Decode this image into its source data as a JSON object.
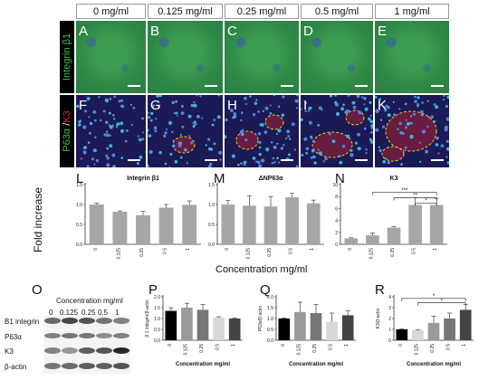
{
  "columns": [
    "0 mg/ml",
    "0.125 mg/ml",
    "0.25 mg/ml",
    "0.5 mg/ml",
    "1 mg/ml"
  ],
  "row_labels": {
    "row1": "Integrin β1",
    "row2_a": "P63α",
    "row2_sep": " /",
    "row2_b": "K3"
  },
  "panel_letters_row1": [
    "A",
    "B",
    "C",
    "D",
    "E"
  ],
  "panel_letters_row2": [
    "F",
    "G",
    "H",
    "I",
    "K"
  ],
  "colors": {
    "green": "#33a04a",
    "red": "#e02020",
    "bar": "#a6a6a6",
    "nuclei": "#1c2d8a"
  },
  "charts_top": {
    "y_axis_label": "Fold increase",
    "x_axis_label": "Concentration mg/ml",
    "panels": [
      "L",
      "M",
      "N"
    ]
  },
  "western_blot": {
    "panel": "O",
    "title": "Concentration mg/ml",
    "lane_labels": [
      "0",
      "0.125",
      "0.25",
      "0.5",
      "1"
    ],
    "band_labels": [
      "B1 integrin",
      "P63α",
      "K3",
      "β-actin"
    ]
  },
  "chart_data": [
    {
      "panel": "L",
      "type": "bar",
      "title": "Integrin β1",
      "categories": [
        "0",
        "0.125",
        "0.25",
        "0.5",
        "1"
      ],
      "values": [
        1.0,
        0.82,
        0.73,
        0.92,
        0.99
      ],
      "errors": [
        0.03,
        0.02,
        0.1,
        0.08,
        0.1
      ],
      "ylim": [
        0,
        1.5
      ],
      "yticks": [
        "0.0",
        "0.5",
        "1.0",
        "1.5"
      ]
    },
    {
      "panel": "M",
      "type": "bar",
      "title": "ΔNP63α",
      "categories": [
        "0",
        "0.125",
        "0.25",
        "0.5",
        "1"
      ],
      "values": [
        1.0,
        0.97,
        0.95,
        1.18,
        1.03
      ],
      "errors": [
        0.1,
        0.25,
        0.25,
        0.1,
        0.08
      ],
      "ylim": [
        0,
        1.5
      ],
      "yticks": [
        "0.0",
        "0.5",
        "1.0",
        "1.5"
      ]
    },
    {
      "panel": "N",
      "type": "bar",
      "title": "K3",
      "categories": [
        "0",
        "0.125",
        "0.25",
        "0.5",
        "1"
      ],
      "values": [
        1.0,
        1.5,
        2.8,
        6.6,
        6.6
      ],
      "errors": [
        0.1,
        0.4,
        0.2,
        1.2,
        1.1
      ],
      "ylim": [
        0,
        10
      ],
      "yticks": [
        "0",
        "2",
        "4",
        "6",
        "8",
        "10"
      ],
      "significance": [
        "***",
        "**",
        "*"
      ]
    },
    {
      "panel": "P",
      "type": "bar",
      "ylabel": "β 1 integrin/β-actin",
      "xlabel": "Concentration mg/ml",
      "categories": [
        "0",
        "0.125",
        "0.25",
        "0.5",
        "1"
      ],
      "values": [
        1.35,
        1.5,
        1.4,
        1.05,
        1.0
      ],
      "errors": [
        0.15,
        0.2,
        0.25,
        0.03,
        0.03
      ],
      "colors": [
        "#000000",
        "#9a9a9a",
        "#777777",
        "#d8d8d8",
        "#444444"
      ],
      "ylim": [
        0,
        2.0
      ],
      "yticks": [
        "0.0",
        "0.5",
        "1.0",
        "1.5",
        "2.0"
      ]
    },
    {
      "panel": "Q",
      "type": "bar",
      "ylabel": "P63α/β-actin",
      "xlabel": "Concentration mg/ml",
      "categories": [
        "0",
        "0.125",
        "0.25",
        "0.5",
        "1"
      ],
      "values": [
        1.0,
        1.3,
        1.25,
        0.85,
        1.15
      ],
      "errors": [
        0.03,
        0.45,
        0.4,
        0.4,
        0.2
      ],
      "colors": [
        "#000000",
        "#9a9a9a",
        "#777777",
        "#d8d8d8",
        "#444444"
      ],
      "ylim": [
        0,
        2.0
      ],
      "yticks": [
        "0.0",
        "0.5",
        "1.0",
        "1.5",
        "2.0"
      ]
    },
    {
      "panel": "R",
      "type": "bar",
      "ylabel": "K3/β-actin",
      "xlabel": "Concentration mg/ml",
      "categories": [
        "0",
        "0.125",
        "0.25",
        "0.5",
        "1"
      ],
      "values": [
        1.0,
        0.95,
        1.6,
        2.0,
        2.8
      ],
      "errors": [
        0.03,
        0.03,
        0.6,
        0.5,
        0.5
      ],
      "colors": [
        "#000000",
        "#d8d8d8",
        "#9a9a9a",
        "#777777",
        "#444444"
      ],
      "ylim": [
        0,
        4
      ],
      "yticks": [
        "0",
        "1",
        "2",
        "3",
        "4"
      ],
      "significance": [
        "*",
        "*"
      ]
    }
  ]
}
